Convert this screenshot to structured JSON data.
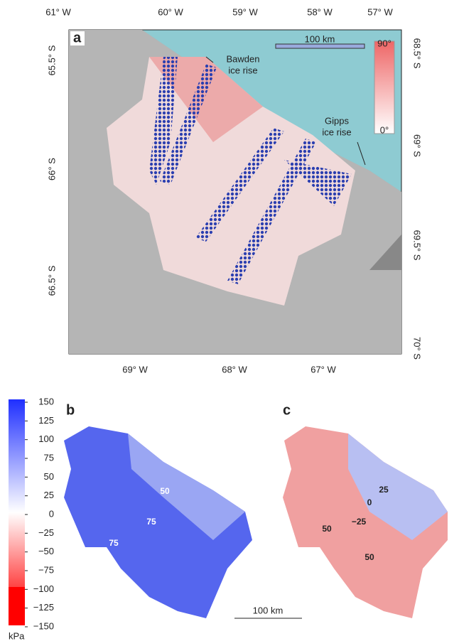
{
  "panel_a": {
    "label": "a",
    "top_axis": [
      "61° W",
      "60° W",
      "59° W",
      "58° W",
      "57° W"
    ],
    "bottom_axis": [
      "69° W",
      "68° W",
      "67° W"
    ],
    "left_axis": [
      "65.5° S",
      "66° S",
      "66.5° S"
    ],
    "right_axis": [
      "68.5° S",
      "69° S",
      "69.5° S",
      "70° S"
    ],
    "scale_bar": "100 km",
    "colorbar": {
      "max": "90°",
      "min": "0°"
    },
    "annotations": {
      "bawden": [
        "Bawden",
        "ice rise"
      ],
      "gipps": [
        "Gipps",
        "ice rise"
      ]
    }
  },
  "panel_b": {
    "label": "b",
    "contour_labels": [
      "50",
      "75",
      "75"
    ]
  },
  "panel_c": {
    "label": "c",
    "contour_labels": [
      "25",
      "0",
      "−25",
      "50",
      "50"
    ]
  },
  "colorbar": {
    "unit": "kPa",
    "lim": [
      -150,
      150
    ],
    "ticks": [
      150,
      125,
      100,
      75,
      50,
      25,
      0,
      {
        "value": -25,
        "label": "−25"
      },
      {
        "value": -50,
        "label": "−50"
      },
      {
        "value": -75,
        "label": "−75"
      },
      {
        "value": -100,
        "label": "−100"
      },
      {
        "value": -125,
        "label": "−125"
      },
      {
        "value": -150,
        "label": "−150"
      }
    ]
  },
  "scale_bar": "100 km"
}
